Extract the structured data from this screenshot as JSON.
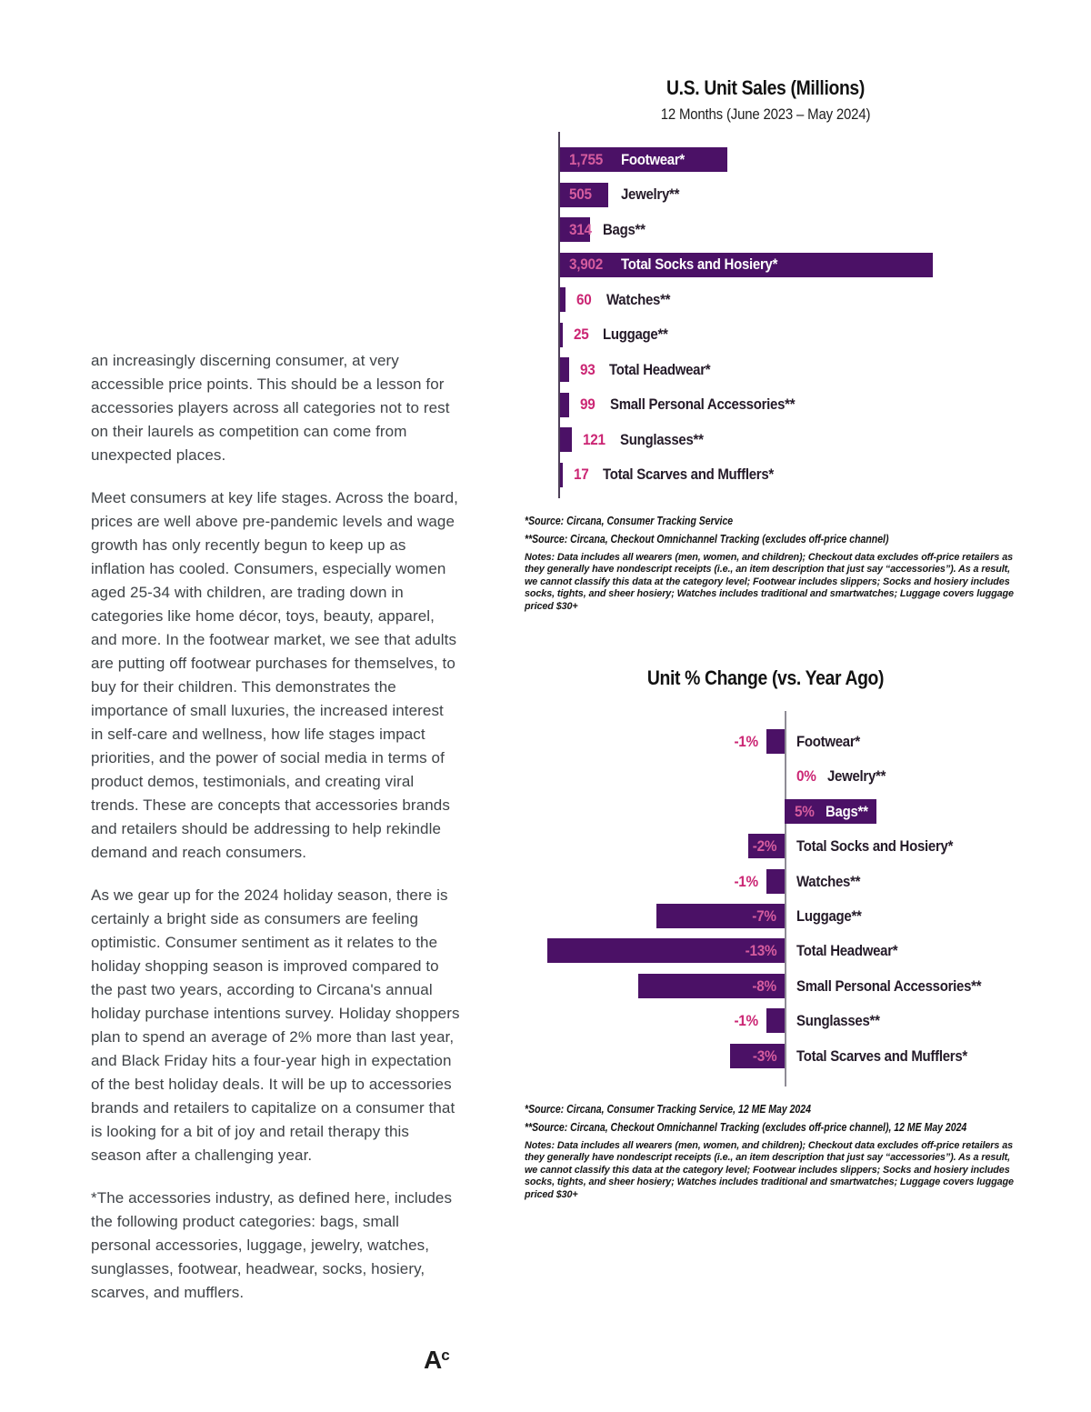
{
  "article": {
    "paragraphs": [
      "an increasingly discerning consumer, at very accessible price points. This should be a lesson for accessories players across all categories not to rest on their laurels as competition can come from unexpected places.",
      "Meet consumers at key life stages. Across the board, prices are well above pre-pandemic levels and wage growth has only recently begun to keep up as inflation has cooled. Consumers, especially women aged 25-34 with children, are trading down in categories like home décor, toys, beauty, apparel, and more. In the footwear market, we see that adults are putting off footwear purchases for themselves, to buy for their children. This demonstrates the importance of small luxuries, the increased interest in self-care and wellness, how life stages impact priorities, and the power of social media in terms of product demos, testimonials, and creating viral trends. These are concepts that accessories brands and retailers should be addressing to help rekindle demand and reach consumers.",
      "As we gear up for the 2024 holiday season, there is certainly a bright side as consumers are feeling optimistic. Consumer sentiment as it relates to the holiday shopping season is improved compared to the past two years, according to Circana's annual holiday purchase intentions survey. Holiday shoppers plan to spend an average of 2% more than last year, and Black Friday hits a four-year high in expectation of the best holiday deals.  It will be up to accessories brands and retailers to capitalize on a consumer that is looking for a bit of joy and retail therapy this season after a challenging year.",
      "*The accessories industry, as defined here, includes the following product categories: bags, small personal accessories, luggage, jewelry, watches, sunglasses, footwear, headwear, socks, hosiery, scarves, and mufflers."
    ]
  },
  "logo": {
    "letter": "A",
    "sup": "c"
  },
  "colors": {
    "bar_purple": "#4b1166",
    "value_pink": "#cb2674",
    "value_pink_inside": "#d55c9e",
    "label_dark": "#241a28",
    "label_white": "#ffffff",
    "axis_dark": "#4e4059",
    "axis_gray": "#8f8c96",
    "body_text": "#3f4347"
  },
  "chart_data": [
    {
      "type": "bar",
      "orientation": "horizontal",
      "title": "U.S. Unit Sales (Millions)",
      "subtitle": "12 Months (June 2023 – May 2024)",
      "xlim": [
        0,
        3902
      ],
      "grid": false,
      "legend": false,
      "categories": [
        "Footwear*",
        "Jewelry**",
        "Bags**",
        "Total Socks and Hosiery*",
        "Watches**",
        "Luggage**",
        "Total Headwear*",
        "Small Personal Accessories**",
        "Sunglasses**",
        "Total Scarves and Mufflers*"
      ],
      "values": [
        1755,
        505,
        314,
        3902,
        60,
        25,
        93,
        99,
        121,
        17
      ],
      "value_labels": [
        "1,755",
        "505",
        "314",
        "3,902",
        "60",
        "25",
        "93",
        "99",
        "121",
        "17"
      ],
      "value_inside": [
        true,
        true,
        true,
        true,
        false,
        false,
        false,
        false,
        false,
        false
      ],
      "label_inside": [
        true,
        false,
        false,
        true,
        false,
        false,
        false,
        false,
        false,
        false
      ],
      "sources": [
        "*Source: Circana, Consumer Tracking Service",
        "**Source: Circana, Checkout Omnichannel Tracking (excludes off-price channel)"
      ],
      "notes": "Notes: Data includes all wearers (men, women, and children); Checkout data excludes off-price retailers as they generally have nondescript receipts (i.e., an item description that just say “accessories”). As a result, we cannot classify this data at the category level; Footwear includes slippers; Socks and hosiery includes socks, tights, and sheer hosiery; Watches includes traditional and smartwatches; Luggage covers luggage priced $30+"
    },
    {
      "type": "bar",
      "orientation": "horizontal",
      "title": "Unit % Change (vs. Year Ago)",
      "subtitle": "",
      "xlim": [
        -13,
        5
      ],
      "grid": false,
      "legend": false,
      "categories": [
        "Footwear*",
        "Jewelry**",
        "Bags**",
        "Total Socks and Hosiery*",
        "Watches**",
        "Luggage**",
        "Total Headwear*",
        "Small Personal Accessories**",
        "Sunglasses**",
        "Total Scarves and Mufflers*"
      ],
      "values": [
        -1,
        0,
        5,
        -2,
        -1,
        -7,
        -13,
        -8,
        -1,
        -3
      ],
      "value_labels": [
        "-1%",
        "0%",
        "5%",
        "-2%",
        "-1%",
        "-7%",
        "-13%",
        "-8%",
        "-1%",
        "-3%"
      ],
      "value_inside": [
        false,
        false,
        true,
        true,
        false,
        true,
        true,
        true,
        false,
        true
      ],
      "label_inside": [
        false,
        false,
        true,
        false,
        false,
        false,
        false,
        false,
        false,
        false
      ],
      "sources": [
        "*Source: Circana, Consumer Tracking Service, 12 ME May 2024",
        "**Source: Circana, Checkout Omnichannel Tracking (excludes off-price channel), 12 ME May 2024"
      ],
      "notes": "Notes: Data includes all wearers (men, women, and children); Checkout data excludes off-price retailers as they generally have nondescript receipts (i.e., an item description that just say “accessories”). As a result, we cannot classify this data at the category level; Footwear includes slippers; Socks and hosiery includes socks, tights, and sheer hosiery; Watches includes traditional and smartwatches; Luggage covers luggage priced $30+"
    }
  ]
}
